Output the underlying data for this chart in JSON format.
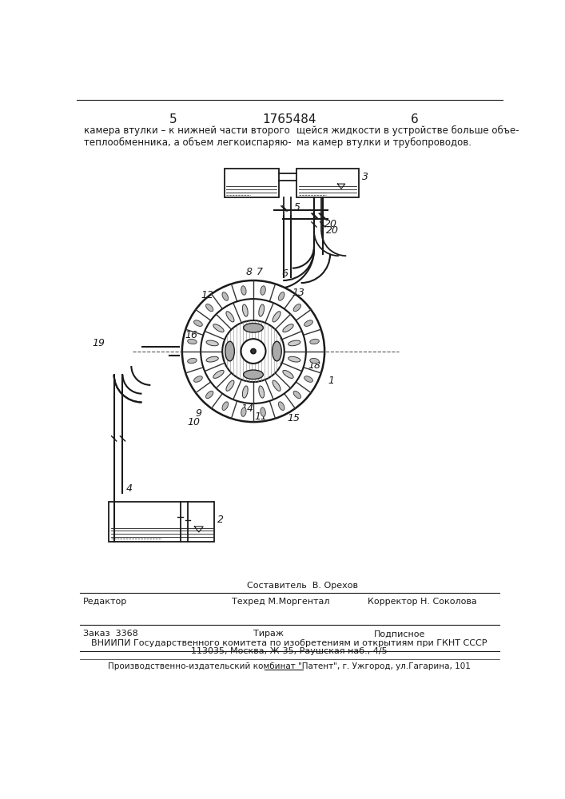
{
  "bg_color": "#ffffff",
  "line_color": "#1a1a1a",
  "header_text_left": "камера втулки – к нижней части второго\nтеплообменника, а объем легкоиспаряю-",
  "header_text_right": "щейся жидкости в устройстве больше объе-\nма камер втулки и трубопроводов.",
  "page_num_left": "5",
  "page_num_center": "1765484",
  "page_num_right": "6",
  "footer_editor": "Редактор",
  "footer_composer": "Составитель  В. Орехов",
  "footer_techred": "Техред М.Моргентал",
  "footer_corrector": "Корректор Н. Соколова",
  "footer_order": "Заказ  3368",
  "footer_tirazh": "Тираж",
  "footer_podpisnoe": "Подписное",
  "footer_vniiipi": "ВНИИПИ Государственного комитета по изобретениям и открытиям при ГКНТ СССР",
  "footer_address": "113035, Москва, Ж-35, Раушская наб., 4/5",
  "footer_factory": "Производственно-издательский комбинат \"Патент\", г. Ужгород, ул.Гагарина, 101"
}
